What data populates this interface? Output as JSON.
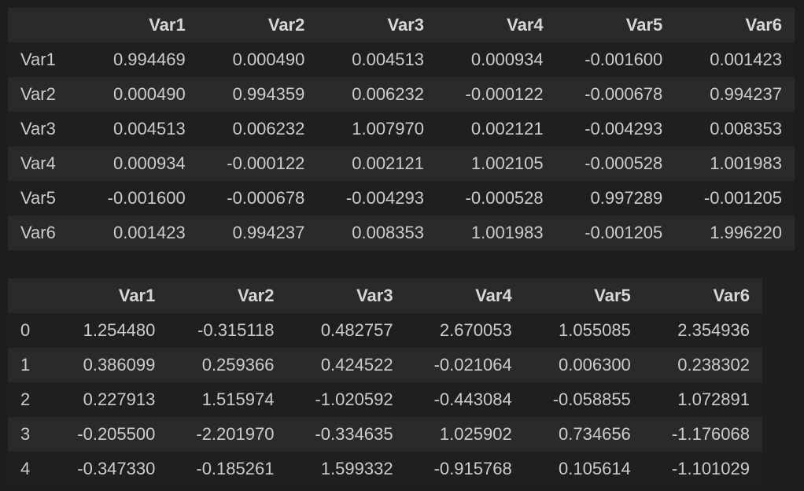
{
  "cov_table": {
    "columns": [
      "Var1",
      "Var2",
      "Var3",
      "Var4",
      "Var5",
      "Var6"
    ],
    "rows": [
      {
        "index": "Var1",
        "values": [
          "0.994469",
          "0.000490",
          "0.004513",
          "0.000934",
          "-0.001600",
          "0.001423"
        ]
      },
      {
        "index": "Var2",
        "values": [
          "0.000490",
          "0.994359",
          "0.006232",
          "-0.000122",
          "-0.000678",
          "0.994237"
        ]
      },
      {
        "index": "Var3",
        "values": [
          "0.004513",
          "0.006232",
          "1.007970",
          "0.002121",
          "-0.004293",
          "0.008353"
        ]
      },
      {
        "index": "Var4",
        "values": [
          "0.000934",
          "-0.000122",
          "0.002121",
          "1.002105",
          "-0.000528",
          "1.001983"
        ]
      },
      {
        "index": "Var5",
        "values": [
          "-0.001600",
          "-0.000678",
          "-0.004293",
          "-0.000528",
          "0.997289",
          "-0.001205"
        ]
      },
      {
        "index": "Var6",
        "values": [
          "0.001423",
          "0.994237",
          "0.008353",
          "1.001983",
          "-0.001205",
          "1.996220"
        ]
      }
    ]
  },
  "df_table": {
    "columns": [
      "Var1",
      "Var2",
      "Var3",
      "Var4",
      "Var5",
      "Var6"
    ],
    "rows": [
      {
        "index": "0",
        "values": [
          "1.254480",
          "-0.315118",
          "0.482757",
          "2.670053",
          "1.055085",
          "2.354936"
        ]
      },
      {
        "index": "1",
        "values": [
          "0.386099",
          "0.259366",
          "0.424522",
          "-0.021064",
          "0.006300",
          "0.238302"
        ]
      },
      {
        "index": "2",
        "values": [
          "0.227913",
          "1.515974",
          "-1.020592",
          "-0.443084",
          "-0.058855",
          "1.072891"
        ]
      },
      {
        "index": "3",
        "values": [
          "-0.205500",
          "-2.201970",
          "-0.334635",
          "1.025902",
          "0.734656",
          "-1.176068"
        ]
      },
      {
        "index": "4",
        "values": [
          "-0.347330",
          "-0.185261",
          "1.599332",
          "-0.915768",
          "0.105614",
          "-1.101029"
        ]
      }
    ]
  }
}
